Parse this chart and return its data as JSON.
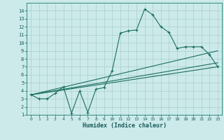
{
  "xlabel": "Humidex (Indice chaleur)",
  "bg_color": "#cceaea",
  "grid_color": "#aacece",
  "line_color": "#1a6e5e",
  "xlim": [
    -0.5,
    23.5
  ],
  "ylim": [
    1,
    15
  ],
  "xticks": [
    0,
    1,
    2,
    3,
    4,
    5,
    6,
    7,
    8,
    9,
    10,
    11,
    12,
    13,
    14,
    15,
    16,
    17,
    18,
    19,
    20,
    21,
    22,
    23
  ],
  "yticks": [
    1,
    2,
    3,
    4,
    5,
    6,
    7,
    8,
    9,
    10,
    11,
    12,
    13,
    14
  ],
  "curve1_x": [
    0,
    1,
    2,
    3,
    4,
    5,
    6,
    7,
    8,
    9,
    10,
    11,
    12,
    13,
    14,
    15,
    16,
    17,
    18,
    19,
    20,
    21,
    22,
    23
  ],
  "curve1_y": [
    3.5,
    3.0,
    3.0,
    3.7,
    4.5,
    1.2,
    4.0,
    1.3,
    4.2,
    4.4,
    6.5,
    11.2,
    11.5,
    11.6,
    14.2,
    13.5,
    12.0,
    11.3,
    9.3,
    9.5,
    9.5,
    9.5,
    8.5,
    7.0
  ],
  "line2_x0": 0,
  "line2_y0": 3.5,
  "line2_x1": 23,
  "line2_y1": 9.0,
  "line3_x0": 0,
  "line3_y0": 3.5,
  "line3_x1": 23,
  "line3_y1": 7.5,
  "line4_x0": 0,
  "line4_y0": 3.5,
  "line4_x1": 23,
  "line4_y1": 7.0
}
